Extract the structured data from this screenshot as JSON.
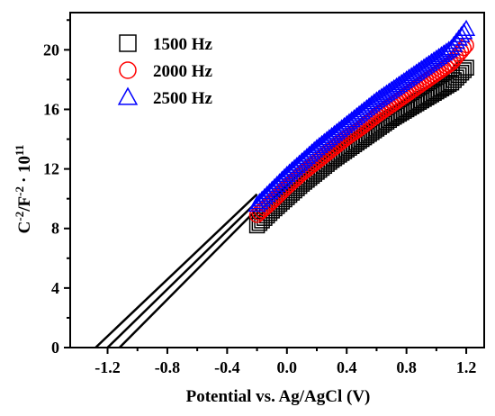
{
  "chart_data": {
    "type": "scatter",
    "title": "",
    "xlabel": "Potential vs. Ag/AgCl (V)",
    "ylabel": {
      "base1": "C",
      "sup1": "-2",
      "base2": "/F",
      "sup2": "-2",
      "base3": "· 10",
      "sup3": "11"
    },
    "xlim": [
      -1.45,
      1.32
    ],
    "ylim": [
      0,
      22.5
    ],
    "xticks": [
      -1.2,
      -0.8,
      -0.4,
      0.0,
      0.4,
      0.8,
      1.2
    ],
    "xtick_labels": [
      "-1.2",
      "-0.8",
      "-0.4",
      "0.0",
      "0.4",
      "0.8",
      "1.2"
    ],
    "yticks": [
      0,
      4,
      8,
      12,
      16,
      20
    ],
    "ytick_labels": [
      "0",
      "4",
      "8",
      "12",
      "16",
      "20"
    ],
    "grid": false,
    "legend_position": "top-left",
    "series": [
      {
        "name": "1500 Hz",
        "marker": "square",
        "color": "#000000",
        "points": [
          [
            -0.2,
            8.2
          ],
          [
            -0.1,
            9.2
          ],
          [
            0.0,
            10.1
          ],
          [
            0.1,
            11.0
          ],
          [
            0.2,
            11.8
          ],
          [
            0.3,
            12.6
          ],
          [
            0.4,
            13.3
          ],
          [
            0.5,
            14.0
          ],
          [
            0.6,
            14.7
          ],
          [
            0.7,
            15.4
          ],
          [
            0.8,
            16.0
          ],
          [
            0.9,
            16.6
          ],
          [
            1.0,
            17.2
          ],
          [
            1.1,
            17.8
          ],
          [
            1.2,
            18.8
          ]
        ],
        "fit_line": [
          [
            -1.12,
            0
          ],
          [
            -0.2,
            9.3
          ]
        ]
      },
      {
        "name": "2000 Hz",
        "marker": "circle",
        "color": "#ff0000",
        "points": [
          [
            -0.2,
            8.9
          ],
          [
            -0.1,
            9.8
          ],
          [
            0.0,
            10.8
          ],
          [
            0.1,
            11.7
          ],
          [
            0.2,
            12.5
          ],
          [
            0.3,
            13.3
          ],
          [
            0.4,
            14.1
          ],
          [
            0.5,
            14.8
          ],
          [
            0.6,
            15.6
          ],
          [
            0.7,
            16.3
          ],
          [
            0.8,
            17.0
          ],
          [
            0.9,
            17.7
          ],
          [
            1.0,
            18.4
          ],
          [
            1.1,
            19.1
          ],
          [
            1.2,
            20.3
          ]
        ],
        "fit_line": [
          [
            -1.2,
            0
          ],
          [
            -0.2,
            9.8
          ]
        ]
      },
      {
        "name": "2500 Hz",
        "marker": "triangle",
        "color": "#0000ff",
        "points": [
          [
            -0.2,
            9.6
          ],
          [
            -0.1,
            10.6
          ],
          [
            0.0,
            11.6
          ],
          [
            0.1,
            12.5
          ],
          [
            0.2,
            13.4
          ],
          [
            0.3,
            14.2
          ],
          [
            0.4,
            15.0
          ],
          [
            0.5,
            15.8
          ],
          [
            0.6,
            16.6
          ],
          [
            0.7,
            17.3
          ],
          [
            0.8,
            18.0
          ],
          [
            0.9,
            18.7
          ],
          [
            1.0,
            19.4
          ],
          [
            1.1,
            20.1
          ],
          [
            1.2,
            21.4
          ]
        ],
        "fit_line": [
          [
            -1.28,
            0
          ],
          [
            -0.2,
            10.3
          ]
        ]
      }
    ]
  }
}
